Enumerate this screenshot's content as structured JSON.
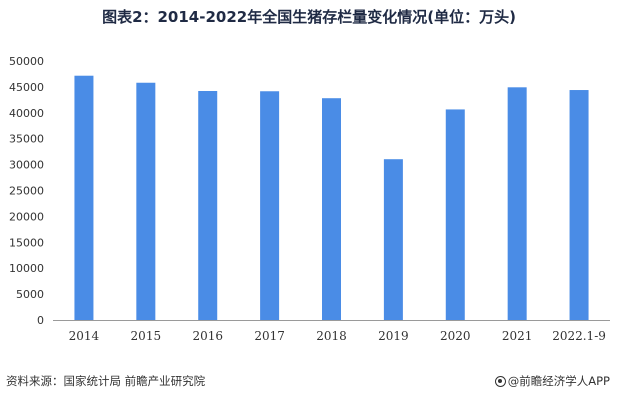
{
  "chart_data": {
    "type": "bar",
    "title": "图表2：2014-2022年全国生猪存栏量变化情况(单位：万头)",
    "categories": [
      "2014",
      "2015",
      "2016",
      "2017",
      "2018",
      "2019",
      "2020",
      "2021",
      "2022.1-9"
    ],
    "values": [
      47160,
      45803,
      44209,
      44159,
      42817,
      31041,
      40650,
      44922,
      44394
    ],
    "ylim": [
      0,
      50000
    ],
    "yticks": [
      0,
      5000,
      10000,
      15000,
      20000,
      25000,
      30000,
      35000,
      40000,
      45000,
      50000
    ],
    "xlabel": "",
    "ylabel": "",
    "grid": false,
    "bar_color": "#4a8ce6"
  },
  "footer": {
    "source": "资料来源：国家统计局 前瞻产业研究院",
    "brand": "@前瞻经济学人APP"
  }
}
